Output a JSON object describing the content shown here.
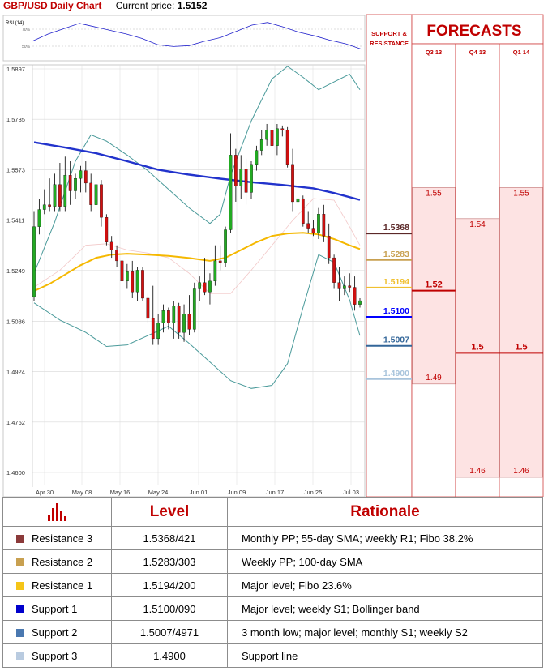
{
  "header": {
    "title": "GBP/USD Daily Chart",
    "price_label": "Current price:",
    "price_value": "1.5152"
  },
  "rsi": {
    "label": "RSI (14)",
    "ticks": [
      "70%",
      "50%"
    ]
  },
  "chart_data": {
    "type": "candlestick",
    "ylim": [
      1.46,
      1.5897
    ],
    "y_ticks": [
      "1.5897",
      "1.5735",
      "1.5573",
      "1.5411",
      "1.5249",
      "1.5086",
      "1.4924",
      "1.4762",
      "1.4600"
    ],
    "x_ticks": [
      "Apr 30",
      "May 08",
      "May 16",
      "May 24",
      "Jun 01",
      "Jun 09",
      "Jun 17",
      "Jun 25",
      "Jul 03"
    ],
    "candles": [
      {
        "o": 1.5165,
        "h": 1.544,
        "l": 1.515,
        "c": 1.539
      },
      {
        "o": 1.539,
        "h": 1.548,
        "l": 1.5365,
        "c": 1.5445
      },
      {
        "o": 1.5445,
        "h": 1.551,
        "l": 1.543,
        "c": 1.546
      },
      {
        "o": 1.546,
        "h": 1.5545,
        "l": 1.544,
        "c": 1.5455
      },
      {
        "o": 1.5455,
        "h": 1.556,
        "l": 1.544,
        "c": 1.5525
      },
      {
        "o": 1.5525,
        "h": 1.5595,
        "l": 1.544,
        "c": 1.5455
      },
      {
        "o": 1.5455,
        "h": 1.5615,
        "l": 1.544,
        "c": 1.5555
      },
      {
        "o": 1.5555,
        "h": 1.56,
        "l": 1.546,
        "c": 1.5505
      },
      {
        "o": 1.5505,
        "h": 1.556,
        "l": 1.548,
        "c": 1.5545
      },
      {
        "o": 1.5545,
        "h": 1.5585,
        "l": 1.55,
        "c": 1.557
      },
      {
        "o": 1.557,
        "h": 1.56,
        "l": 1.55,
        "c": 1.553
      },
      {
        "o": 1.553,
        "h": 1.556,
        "l": 1.544,
        "c": 1.546
      },
      {
        "o": 1.546,
        "h": 1.556,
        "l": 1.544,
        "c": 1.5525
      },
      {
        "o": 1.5525,
        "h": 1.554,
        "l": 1.539,
        "c": 1.542
      },
      {
        "o": 1.542,
        "h": 1.543,
        "l": 1.533,
        "c": 1.534
      },
      {
        "o": 1.534,
        "h": 1.536,
        "l": 1.529,
        "c": 1.5315
      },
      {
        "o": 1.5315,
        "h": 1.533,
        "l": 1.526,
        "c": 1.528
      },
      {
        "o": 1.528,
        "h": 1.53,
        "l": 1.52,
        "c": 1.5215
      },
      {
        "o": 1.5215,
        "h": 1.527,
        "l": 1.519,
        "c": 1.5245
      },
      {
        "o": 1.5245,
        "h": 1.528,
        "l": 1.516,
        "c": 1.518
      },
      {
        "o": 1.518,
        "h": 1.526,
        "l": 1.515,
        "c": 1.525
      },
      {
        "o": 1.525,
        "h": 1.526,
        "l": 1.515,
        "c": 1.516
      },
      {
        "o": 1.516,
        "h": 1.5175,
        "l": 1.508,
        "c": 1.5095
      },
      {
        "o": 1.5095,
        "h": 1.52,
        "l": 1.501,
        "c": 1.503
      },
      {
        "o": 1.503,
        "h": 1.511,
        "l": 1.501,
        "c": 1.508
      },
      {
        "o": 1.508,
        "h": 1.514,
        "l": 1.505,
        "c": 1.512
      },
      {
        "o": 1.512,
        "h": 1.513,
        "l": 1.506,
        "c": 1.508
      },
      {
        "o": 1.508,
        "h": 1.515,
        "l": 1.503,
        "c": 1.5135
      },
      {
        "o": 1.5135,
        "h": 1.5145,
        "l": 1.503,
        "c": 1.505
      },
      {
        "o": 1.505,
        "h": 1.514,
        "l": 1.502,
        "c": 1.511
      },
      {
        "o": 1.511,
        "h": 1.517,
        "l": 1.504,
        "c": 1.506
      },
      {
        "o": 1.506,
        "h": 1.521,
        "l": 1.505,
        "c": 1.519
      },
      {
        "o": 1.519,
        "h": 1.523,
        "l": 1.515,
        "c": 1.521
      },
      {
        "o": 1.521,
        "h": 1.529,
        "l": 1.517,
        "c": 1.518
      },
      {
        "o": 1.518,
        "h": 1.524,
        "l": 1.514,
        "c": 1.5215
      },
      {
        "o": 1.5215,
        "h": 1.533,
        "l": 1.52,
        "c": 1.528
      },
      {
        "o": 1.528,
        "h": 1.533,
        "l": 1.525,
        "c": 1.5275
      },
      {
        "o": 1.5275,
        "h": 1.539,
        "l": 1.526,
        "c": 1.538
      },
      {
        "o": 1.538,
        "h": 1.569,
        "l": 1.537,
        "c": 1.562
      },
      {
        "o": 1.562,
        "h": 1.564,
        "l": 1.547,
        "c": 1.552
      },
      {
        "o": 1.552,
        "h": 1.562,
        "l": 1.548,
        "c": 1.5575
      },
      {
        "o": 1.5575,
        "h": 1.561,
        "l": 1.546,
        "c": 1.55
      },
      {
        "o": 1.55,
        "h": 1.56,
        "l": 1.548,
        "c": 1.559
      },
      {
        "o": 1.559,
        "h": 1.565,
        "l": 1.557,
        "c": 1.5635
      },
      {
        "o": 1.5635,
        "h": 1.57,
        "l": 1.562,
        "c": 1.567
      },
      {
        "o": 1.567,
        "h": 1.572,
        "l": 1.565,
        "c": 1.57
      },
      {
        "o": 1.57,
        "h": 1.572,
        "l": 1.558,
        "c": 1.565
      },
      {
        "o": 1.565,
        "h": 1.572,
        "l": 1.562,
        "c": 1.5705
      },
      {
        "o": 1.5705,
        "h": 1.5715,
        "l": 1.568,
        "c": 1.57
      },
      {
        "o": 1.57,
        "h": 1.571,
        "l": 1.558,
        "c": 1.559
      },
      {
        "o": 1.559,
        "h": 1.564,
        "l": 1.544,
        "c": 1.547
      },
      {
        "o": 1.547,
        "h": 1.549,
        "l": 1.543,
        "c": 1.548
      },
      {
        "o": 1.548,
        "h": 1.549,
        "l": 1.539,
        "c": 1.54
      },
      {
        "o": 1.54,
        "h": 1.544,
        "l": 1.537,
        "c": 1.5385
      },
      {
        "o": 1.5385,
        "h": 1.541,
        "l": 1.536,
        "c": 1.537
      },
      {
        "o": 1.537,
        "h": 1.545,
        "l": 1.535,
        "c": 1.543
      },
      {
        "o": 1.543,
        "h": 1.546,
        "l": 1.534,
        "c": 1.536
      },
      {
        "o": 1.536,
        "h": 1.54,
        "l": 1.527,
        "c": 1.529
      },
      {
        "o": 1.529,
        "h": 1.53,
        "l": 1.519,
        "c": 1.521
      },
      {
        "o": 1.521,
        "h": 1.526,
        "l": 1.515,
        "c": 1.519
      },
      {
        "o": 1.519,
        "h": 1.523,
        "l": 1.517,
        "c": 1.52
      },
      {
        "o": 1.52,
        "h": 1.524,
        "l": 1.518,
        "c": 1.5195
      },
      {
        "o": 1.5195,
        "h": 1.523,
        "l": 1.512,
        "c": 1.514
      },
      {
        "o": 1.514,
        "h": 1.516,
        "l": 1.513,
        "c": 1.5152
      }
    ],
    "sma_100": [
      [
        0,
        1.5183
      ],
      [
        3,
        1.5206
      ],
      [
        6,
        1.5236
      ],
      [
        9,
        1.5266
      ],
      [
        12,
        1.529
      ],
      [
        15,
        1.53
      ],
      [
        18,
        1.5303
      ],
      [
        22,
        1.53
      ],
      [
        26,
        1.5296
      ],
      [
        30,
        1.5289
      ],
      [
        34,
        1.528
      ],
      [
        37,
        1.529
      ],
      [
        40,
        1.5315
      ],
      [
        43,
        1.534
      ],
      [
        46,
        1.536
      ],
      [
        49,
        1.5368
      ],
      [
        52,
        1.537
      ],
      [
        55,
        1.5365
      ],
      [
        58,
        1.535
      ],
      [
        61,
        1.533
      ],
      [
        63,
        1.5318
      ]
    ],
    "sma_200": [
      [
        0,
        1.5661
      ],
      [
        6,
        1.5644
      ],
      [
        12,
        1.5626
      ],
      [
        18,
        1.56
      ],
      [
        24,
        1.5573
      ],
      [
        30,
        1.5557
      ],
      [
        36,
        1.5544
      ],
      [
        42,
        1.5533
      ],
      [
        48,
        1.5524
      ],
      [
        54,
        1.5513
      ],
      [
        58,
        1.5498
      ],
      [
        63,
        1.5476
      ]
    ],
    "bollinger_upper": [
      [
        0,
        1.524
      ],
      [
        4,
        1.5405
      ],
      [
        8,
        1.56
      ],
      [
        11,
        1.5685
      ],
      [
        14,
        1.5665
      ],
      [
        18,
        1.562
      ],
      [
        22,
        1.557
      ],
      [
        26,
        1.551
      ],
      [
        30,
        1.545
      ],
      [
        34,
        1.54
      ],
      [
        36,
        1.543
      ],
      [
        38,
        1.5555
      ],
      [
        42,
        1.573
      ],
      [
        46,
        1.5865
      ],
      [
        49,
        1.5905
      ],
      [
        52,
        1.587
      ],
      [
        55,
        1.583
      ],
      [
        58,
        1.5855
      ],
      [
        61,
        1.588
      ],
      [
        63,
        1.583
      ]
    ],
    "bollinger_lower": [
      [
        0,
        1.5145
      ],
      [
        5,
        1.509
      ],
      [
        10,
        1.505
      ],
      [
        14,
        1.5005
      ],
      [
        18,
        1.501
      ],
      [
        22,
        1.504
      ],
      [
        26,
        1.507
      ],
      [
        30,
        1.5015
      ],
      [
        34,
        1.4955
      ],
      [
        38,
        1.4895
      ],
      [
        42,
        1.487
      ],
      [
        46,
        1.488
      ],
      [
        49,
        1.495
      ],
      [
        52,
        1.513
      ],
      [
        55,
        1.53
      ],
      [
        58,
        1.5275
      ],
      [
        61,
        1.5155
      ],
      [
        63,
        1.504
      ]
    ],
    "bollinger_mid": [
      [
        0,
        1.5195
      ],
      [
        5,
        1.525
      ],
      [
        10,
        1.533
      ],
      [
        14,
        1.5335
      ],
      [
        18,
        1.5315
      ],
      [
        22,
        1.5305
      ],
      [
        26,
        1.529
      ],
      [
        30,
        1.524
      ],
      [
        34,
        1.5175
      ],
      [
        38,
        1.5175
      ],
      [
        42,
        1.525
      ],
      [
        46,
        1.533
      ],
      [
        50,
        1.541
      ],
      [
        54,
        1.548
      ],
      [
        58,
        1.5475
      ],
      [
        61,
        1.539
      ],
      [
        63,
        1.533
      ]
    ],
    "rsi": [
      [
        0,
        52
      ],
      [
        3,
        60
      ],
      [
        6,
        66
      ],
      [
        9,
        72
      ],
      [
        12,
        68
      ],
      [
        15,
        64
      ],
      [
        18,
        60
      ],
      [
        21,
        55
      ],
      [
        24,
        48
      ],
      [
        27,
        46
      ],
      [
        30,
        47
      ],
      [
        33,
        52
      ],
      [
        36,
        56
      ],
      [
        39,
        63
      ],
      [
        42,
        70
      ],
      [
        45,
        73
      ],
      [
        48,
        68
      ],
      [
        51,
        62
      ],
      [
        54,
        58
      ],
      [
        57,
        53
      ],
      [
        60,
        49
      ],
      [
        63,
        43
      ]
    ],
    "levels": [
      {
        "label": "1.5368",
        "value": 1.5368,
        "color": "#5b2828"
      },
      {
        "label": "1.5283",
        "value": 1.5283,
        "color": "#c8a050"
      },
      {
        "label": "1.5194",
        "value": 1.5194,
        "color": "#f0c030"
      },
      {
        "label": "1.5100",
        "value": 1.51,
        "color": "#0000ff"
      },
      {
        "label": "1.5007",
        "value": 1.5007,
        "color": "#336699"
      },
      {
        "label": "1.4900",
        "value": 1.49,
        "color": "#a8c4dc"
      }
    ]
  },
  "panel": {
    "sr_title_line1": "SUPPORT &",
    "sr_title_line2": "RESISTANCE",
    "forecasts_title": "FORECASTS",
    "columns": [
      {
        "label": "Q3 13",
        "high": "1.55",
        "high_value": 1.55,
        "mid": "1.52",
        "mid_value": 1.52,
        "low": "1.49",
        "low_value": 1.49
      },
      {
        "label": "Q4 13",
        "high": "1.54",
        "high_value": 1.54,
        "mid": "1.5",
        "mid_value": 1.5,
        "low": "1.46",
        "low_value": 1.46
      },
      {
        "label": "Q1 14",
        "high": "1.55",
        "high_value": 1.55,
        "mid": "1.5",
        "mid_value": 1.5,
        "low": "1.46",
        "low_value": 1.46
      }
    ]
  },
  "table": {
    "col_level": "Level",
    "col_rationale": "Rationale",
    "rows": [
      {
        "name": "Resistance 3",
        "color": "#8b3a3a",
        "level": "1.5368/421",
        "rationale": "Monthly PP; 55-day SMA; weekly R1; Fibo 38.2%"
      },
      {
        "name": "Resistance 2",
        "color": "#c8a050",
        "level": "1.5283/303",
        "rationale": "Weekly PP; 100-day SMA"
      },
      {
        "name": "Resistance 1",
        "color": "#f5c518",
        "level": "1.5194/200",
        "rationale": "Major level; Fibo 23.6%"
      },
      {
        "name": "Support 1",
        "color": "#0000cc",
        "level": "1.5100/090",
        "rationale": "Major level; weekly S1; Bollinger band"
      },
      {
        "name": "Support 2",
        "color": "#4a78b0",
        "level": "1.5007/4971",
        "rationale": "3 month low; major level; monthly S1; weekly S2"
      },
      {
        "name": "Support 3",
        "color": "#b9cbe0",
        "level": "1.4900",
        "rationale": "Support line"
      }
    ]
  }
}
